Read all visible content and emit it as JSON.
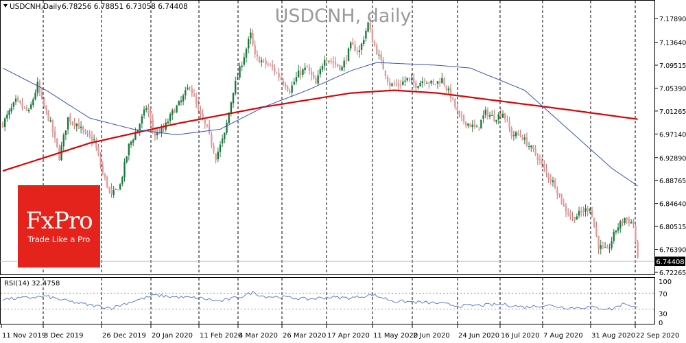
{
  "header": {
    "symbol": "USDCNH,Daily",
    "ohlc": "6.78256 6.78851 6.73058 6.74408",
    "watermark": "USDCNH, daily"
  },
  "brand": {
    "name": "FxPro",
    "tagline": "Trade Like a Pro",
    "color": "#e4241c"
  },
  "rsi": {
    "label": "RSI(14) 32.4758",
    "levels": [
      "100",
      "70",
      "30",
      "0"
    ]
  },
  "colors": {
    "bull_candle": "#1a7a3a",
    "bear_candle": "#e59a9a",
    "ma_slow": "#e00000",
    "ma_fast": "#3451c4",
    "rsi_line": "#5b7fce",
    "last_price_bg": "#000000"
  },
  "chart_data": {
    "type": "candlestick",
    "y_ticks": [
      "7.17890",
      "7.13640",
      "7.09515",
      "7.05390",
      "7.01265",
      "6.97140",
      "6.92890",
      "6.88765",
      "6.84640",
      "6.80515",
      "6.76390",
      "6.72265"
    ],
    "ylim": [
      6.72265,
      7.2
    ],
    "last_price": "6.74408",
    "x_ticks": [
      "11 Nov 2019",
      "3 Dec 2019",
      "26 Dec 2019",
      "20 Jan 2020",
      "11 Feb 2020",
      "4 Mar 2020",
      "26 Mar 2020",
      "17 Apr 2020",
      "11 May 2020",
      "2 Jun 2020",
      "24 Jun 2020",
      "16 Jul 2020",
      "7 Aug 2020",
      "31 Aug 2020",
      "22 Sep 2020"
    ],
    "close_anchors": [
      [
        0,
        6.99
      ],
      [
        6,
        7.03
      ],
      [
        12,
        7.01
      ],
      [
        16,
        7.06
      ],
      [
        18,
        7.03
      ],
      [
        22,
        6.99
      ],
      [
        26,
        6.93
      ],
      [
        30,
        7.0
      ],
      [
        34,
        6.99
      ],
      [
        38,
        6.97
      ],
      [
        42,
        6.96
      ],
      [
        46,
        6.9
      ],
      [
        50,
        6.86
      ],
      [
        54,
        6.88
      ],
      [
        58,
        6.95
      ],
      [
        62,
        6.98
      ],
      [
        66,
        7.02
      ],
      [
        70,
        6.97
      ],
      [
        74,
        6.98
      ],
      [
        78,
        7.01
      ],
      [
        82,
        7.03
      ],
      [
        86,
        7.06
      ],
      [
        90,
        7.01
      ],
      [
        94,
        6.98
      ],
      [
        98,
        6.93
      ],
      [
        102,
        6.97
      ],
      [
        106,
        7.05
      ],
      [
        110,
        7.1
      ],
      [
        114,
        7.15
      ],
      [
        116,
        7.11
      ],
      [
        120,
        7.1
      ],
      [
        124,
        7.09
      ],
      [
        128,
        7.07
      ],
      [
        132,
        7.05
      ],
      [
        136,
        7.08
      ],
      [
        140,
        7.09
      ],
      [
        144,
        7.06
      ],
      [
        148,
        7.11
      ],
      [
        152,
        7.1
      ],
      [
        156,
        7.09
      ],
      [
        160,
        7.13
      ],
      [
        164,
        7.12
      ],
      [
        168,
        7.17
      ],
      [
        170,
        7.14
      ],
      [
        174,
        7.1
      ],
      [
        178,
        7.06
      ],
      [
        182,
        7.06
      ],
      [
        186,
        7.07
      ],
      [
        190,
        7.06
      ],
      [
        194,
        7.07
      ],
      [
        198,
        7.06
      ],
      [
        202,
        7.07
      ],
      [
        206,
        7.04
      ],
      [
        210,
        7.0
      ],
      [
        214,
        6.99
      ],
      [
        218,
        6.98
      ],
      [
        222,
        7.01
      ],
      [
        226,
        7.0
      ],
      [
        230,
        7.01
      ],
      [
        234,
        6.97
      ],
      [
        238,
        6.97
      ],
      [
        242,
        6.95
      ],
      [
        246,
        6.93
      ],
      [
        250,
        6.9
      ],
      [
        254,
        6.88
      ],
      [
        258,
        6.84
      ],
      [
        262,
        6.82
      ],
      [
        266,
        6.83
      ],
      [
        270,
        6.84
      ],
      [
        274,
        6.77
      ],
      [
        278,
        6.76
      ],
      [
        282,
        6.8
      ],
      [
        286,
        6.82
      ],
      [
        290,
        6.81
      ],
      [
        292,
        6.744
      ]
    ],
    "ma_slow_anchors": [
      [
        0,
        6.905
      ],
      [
        40,
        6.955
      ],
      [
        80,
        6.99
      ],
      [
        120,
        7.02
      ],
      [
        160,
        7.045
      ],
      [
        180,
        7.05
      ],
      [
        200,
        7.045
      ],
      [
        230,
        7.03
      ],
      [
        260,
        7.015
      ],
      [
        292,
        6.998
      ]
    ],
    "ma_fast_anchors": [
      [
        0,
        7.09
      ],
      [
        20,
        7.05
      ],
      [
        40,
        7.0
      ],
      [
        60,
        6.98
      ],
      [
        80,
        6.97
      ],
      [
        100,
        6.98
      ],
      [
        120,
        7.02
      ],
      [
        140,
        7.05
      ],
      [
        160,
        7.085
      ],
      [
        172,
        7.1
      ],
      [
        200,
        7.095
      ],
      [
        215,
        7.09
      ],
      [
        240,
        7.05
      ],
      [
        260,
        6.98
      ],
      [
        280,
        6.91
      ],
      [
        292,
        6.878
      ]
    ],
    "rsi_anchors": [
      [
        0,
        55
      ],
      [
        10,
        58
      ],
      [
        20,
        62
      ],
      [
        30,
        50
      ],
      [
        40,
        40
      ],
      [
        50,
        33
      ],
      [
        60,
        50
      ],
      [
        70,
        65
      ],
      [
        80,
        60
      ],
      [
        90,
        58
      ],
      [
        100,
        50
      ],
      [
        110,
        62
      ],
      [
        115,
        72
      ],
      [
        120,
        62
      ],
      [
        130,
        60
      ],
      [
        140,
        55
      ],
      [
        150,
        60
      ],
      [
        160,
        58
      ],
      [
        170,
        66
      ],
      [
        180,
        50
      ],
      [
        200,
        45
      ],
      [
        210,
        38
      ],
      [
        220,
        40
      ],
      [
        230,
        42
      ],
      [
        240,
        35
      ],
      [
        250,
        40
      ],
      [
        260,
        33
      ],
      [
        270,
        35
      ],
      [
        280,
        30
      ],
      [
        286,
        45
      ],
      [
        292,
        32.5
      ]
    ]
  }
}
